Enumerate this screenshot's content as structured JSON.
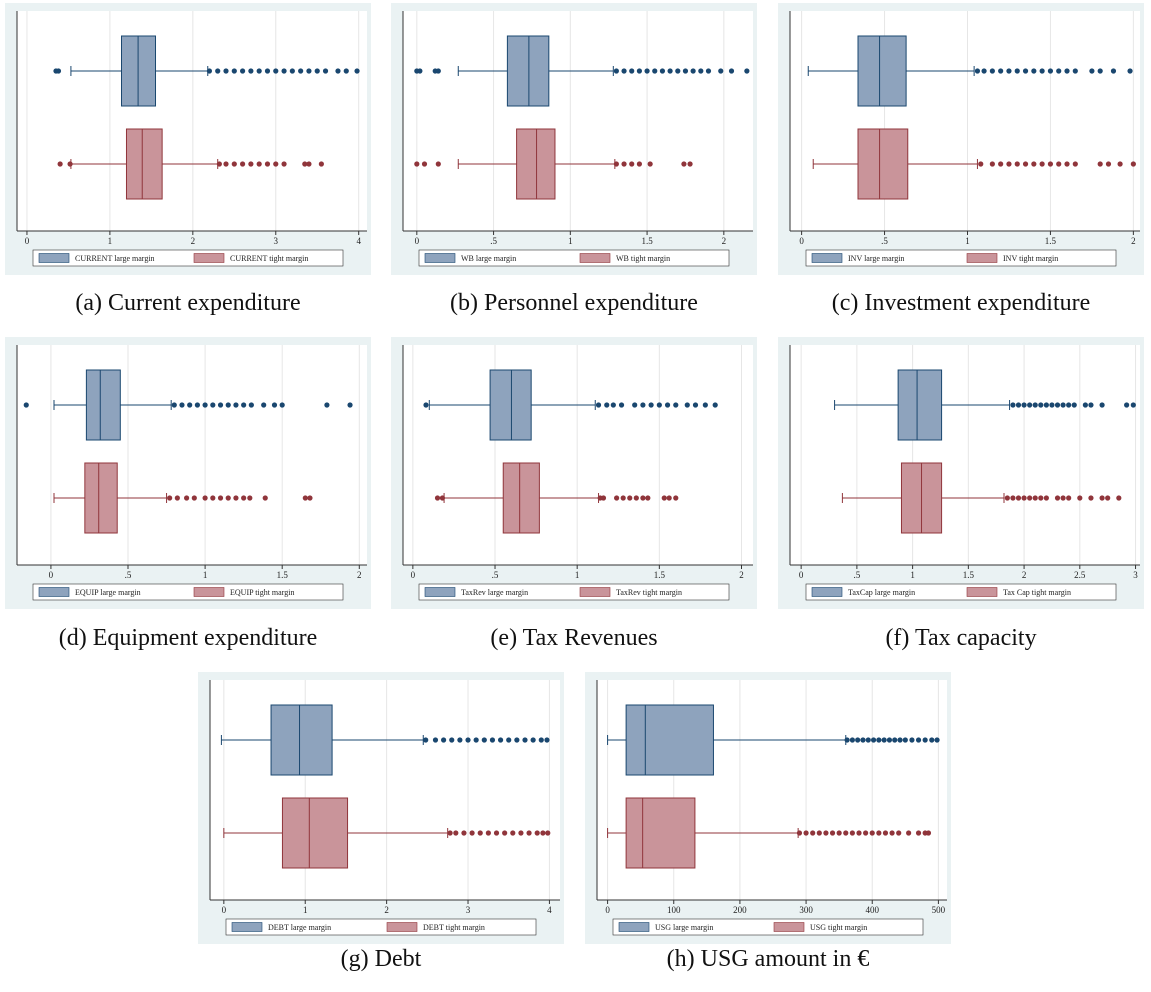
{
  "chart_data": [
    {
      "type": "box",
      "caption": "(a) Current expenditure",
      "xlim": [
        -0.12,
        4.1
      ],
      "xticks": [
        0,
        1,
        2,
        3,
        4
      ],
      "grid": true,
      "series": [
        {
          "name": "CURRENT large margin",
          "color": "#8ea3bd",
          "line_color": "#1a476f",
          "whisker_low": 0.53,
          "q1": 1.14,
          "median": 1.34,
          "q3": 1.55,
          "whisker_high": 2.18,
          "outliers": [
            0.35,
            0.38,
            2.2,
            2.3,
            2.4,
            2.5,
            2.6,
            2.7,
            2.8,
            2.9,
            3.0,
            3.1,
            3.2,
            3.3,
            3.4,
            3.5,
            3.6,
            3.75,
            3.85,
            3.98
          ]
        },
        {
          "name": "CURRENT tight margin",
          "color": "#c9949a",
          "line_color": "#90353b",
          "whisker_low": 0.53,
          "q1": 1.2,
          "median": 1.39,
          "q3": 1.63,
          "whisker_high": 2.3,
          "outliers": [
            0.4,
            0.52,
            2.32,
            2.4,
            2.5,
            2.6,
            2.7,
            2.8,
            2.9,
            3.0,
            3.1,
            3.35,
            3.4,
            3.55
          ]
        }
      ]
    },
    {
      "type": "box",
      "caption": "(b) Personnel expenditure",
      "xlim": [
        -0.09,
        2.19
      ],
      "xticks": [
        0,
        {
          "value": 0.5,
          "label": ".5"
        },
        1,
        1.5,
        2
      ],
      "grid": true,
      "series": [
        {
          "name": "WB large margin",
          "color": "#8ea3bd",
          "line_color": "#1a476f",
          "whisker_low": 0.27,
          "q1": 0.59,
          "median": 0.73,
          "q3": 0.86,
          "whisker_high": 1.28,
          "outliers": [
            0,
            0.02,
            0.12,
            0.14,
            1.3,
            1.35,
            1.4,
            1.45,
            1.5,
            1.55,
            1.6,
            1.65,
            1.7,
            1.75,
            1.8,
            1.85,
            1.9,
            1.98,
            2.05,
            2.15
          ]
        },
        {
          "name": "WB tight margin",
          "color": "#c9949a",
          "line_color": "#90353b",
          "whisker_low": 0.27,
          "q1": 0.65,
          "median": 0.78,
          "q3": 0.9,
          "whisker_high": 1.29,
          "outliers": [
            0,
            0.05,
            0.14,
            1.3,
            1.35,
            1.4,
            1.45,
            1.52,
            1.74,
            1.78
          ]
        }
      ]
    },
    {
      "type": "box",
      "caption": "(c) Investment expenditure",
      "xlim": [
        -0.07,
        2.04
      ],
      "xticks": [
        0,
        {
          "value": 0.5,
          "label": ".5"
        },
        1,
        1.5,
        2
      ],
      "grid": true,
      "series": [
        {
          "name": "INV large margin",
          "color": "#8ea3bd",
          "line_color": "#1a476f",
          "whisker_low": 0.04,
          "q1": 0.34,
          "median": 0.47,
          "q3": 0.63,
          "whisker_high": 1.04,
          "outliers": [
            1.06,
            1.1,
            1.15,
            1.2,
            1.25,
            1.3,
            1.35,
            1.4,
            1.45,
            1.5,
            1.55,
            1.6,
            1.65,
            1.75,
            1.8,
            1.88,
            1.98
          ]
        },
        {
          "name": "INV tight margin",
          "color": "#c9949a",
          "line_color": "#90353b",
          "whisker_low": 0.07,
          "q1": 0.34,
          "median": 0.47,
          "q3": 0.64,
          "whisker_high": 1.06,
          "outliers": [
            1.08,
            1.15,
            1.2,
            1.25,
            1.3,
            1.35,
            1.4,
            1.45,
            1.5,
            1.55,
            1.6,
            1.65,
            1.8,
            1.85,
            1.92,
            2.0
          ]
        }
      ]
    },
    {
      "type": "box",
      "caption": "(d) Equipment expenditure",
      "xlim": [
        -0.22,
        2.05
      ],
      "xticks": [
        0,
        {
          "value": 0.5,
          "label": ".5"
        },
        1,
        1.5,
        2
      ],
      "grid": true,
      "series": [
        {
          "name": "EQUIP large margin",
          "color": "#8ea3bd",
          "line_color": "#1a476f",
          "whisker_low": 0.02,
          "q1": 0.23,
          "median": 0.32,
          "q3": 0.45,
          "whisker_high": 0.78,
          "outliers": [
            -0.16,
            0.8,
            0.85,
            0.9,
            0.95,
            1.0,
            1.05,
            1.1,
            1.15,
            1.2,
            1.25,
            1.3,
            1.38,
            1.45,
            1.5,
            1.79,
            1.94
          ]
        },
        {
          "name": "EQUIP tight margin",
          "color": "#c9949a",
          "line_color": "#90353b",
          "whisker_low": 0.02,
          "q1": 0.22,
          "median": 0.31,
          "q3": 0.43,
          "whisker_high": 0.75,
          "outliers": [
            0.77,
            0.82,
            0.88,
            0.93,
            1.0,
            1.05,
            1.1,
            1.15,
            1.2,
            1.25,
            1.29,
            1.39,
            1.65,
            1.68
          ]
        }
      ]
    },
    {
      "type": "box",
      "caption": "(e) Tax Revenues",
      "xlim": [
        -0.06,
        2.07
      ],
      "xticks": [
        0,
        {
          "value": 0.5,
          "label": ".5"
        },
        1,
        1.5,
        2
      ],
      "grid": true,
      "series": [
        {
          "name": "TaxRev large margin",
          "color": "#8ea3bd",
          "line_color": "#1a476f",
          "whisker_low": 0.1,
          "q1": 0.47,
          "median": 0.6,
          "q3": 0.72,
          "whisker_high": 1.11,
          "outliers": [
            0.08,
            1.13,
            1.18,
            1.22,
            1.27,
            1.35,
            1.4,
            1.45,
            1.5,
            1.55,
            1.6,
            1.67,
            1.72,
            1.78,
            1.84
          ]
        },
        {
          "name": "TaxRev tight margin",
          "color": "#c9949a",
          "line_color": "#90353b",
          "whisker_low": 0.19,
          "q1": 0.55,
          "median": 0.65,
          "q3": 0.77,
          "whisker_high": 1.13,
          "outliers": [
            0.15,
            0.18,
            1.14,
            1.16,
            1.24,
            1.28,
            1.32,
            1.36,
            1.4,
            1.43,
            1.53,
            1.56,
            1.6
          ]
        }
      ]
    },
    {
      "type": "box",
      "caption": "(f) Tax capacity",
      "xlim": [
        -0.1,
        3.04
      ],
      "xticks": [
        0,
        {
          "value": 0.5,
          "label": ".5"
        },
        1,
        1.5,
        2,
        2.5,
        3
      ],
      "grid": true,
      "series": [
        {
          "name": "TaxCap large margin",
          "color": "#8ea3bd",
          "line_color": "#1a476f",
          "whisker_low": 0.3,
          "q1": 0.87,
          "median": 1.04,
          "q3": 1.26,
          "whisker_high": 1.87,
          "outliers": [
            1.9,
            1.95,
            2.0,
            2.05,
            2.1,
            2.15,
            2.2,
            2.25,
            2.3,
            2.35,
            2.4,
            2.45,
            2.55,
            2.6,
            2.7,
            2.92,
            2.98
          ]
        },
        {
          "name": "Tax Cap tight margin",
          "color": "#c9949a",
          "line_color": "#90353b",
          "whisker_low": 0.37,
          "q1": 0.9,
          "median": 1.08,
          "q3": 1.26,
          "whisker_high": 1.82,
          "outliers": [
            1.85,
            1.9,
            1.95,
            2.0,
            2.05,
            2.1,
            2.15,
            2.2,
            2.3,
            2.35,
            2.4,
            2.5,
            2.6,
            2.7,
            2.75,
            2.85
          ]
        }
      ]
    },
    {
      "type": "box",
      "caption": "(g) Debt",
      "xlim": [
        -0.17,
        4.13
      ],
      "xticks": [
        0,
        1,
        2,
        3,
        4
      ],
      "grid": true,
      "series": [
        {
          "name": "DEBT large margin",
          "color": "#8ea3bd",
          "line_color": "#1a476f",
          "whisker_low": -0.03,
          "q1": 0.58,
          "median": 0.93,
          "q3": 1.33,
          "whisker_high": 2.45,
          "outliers": [
            2.48,
            2.6,
            2.7,
            2.8,
            2.9,
            3.0,
            3.1,
            3.2,
            3.3,
            3.4,
            3.5,
            3.6,
            3.7,
            3.8,
            3.9,
            3.97
          ]
        },
        {
          "name": "DEBT tight margin",
          "color": "#c9949a",
          "line_color": "#90353b",
          "whisker_low": 0,
          "q1": 0.72,
          "median": 1.05,
          "q3": 1.52,
          "whisker_high": 2.75,
          "outliers": [
            2.78,
            2.85,
            2.95,
            3.05,
            3.15,
            3.25,
            3.35,
            3.45,
            3.55,
            3.65,
            3.75,
            3.85,
            3.92,
            3.98
          ]
        }
      ]
    },
    {
      "type": "box",
      "caption": "(h) USG amount in €",
      "xlim": [
        -16,
        513
      ],
      "xticks": [
        0,
        100,
        200,
        300,
        400,
        500
      ],
      "grid": true,
      "series": [
        {
          "name": "USG large margin",
          "color": "#8ea3bd",
          "line_color": "#1a476f",
          "whisker_low": 0,
          "q1": 28,
          "median": 57,
          "q3": 160,
          "whisker_high": 360,
          "outliers": [
            362,
            370,
            378,
            386,
            394,
            402,
            410,
            418,
            426,
            434,
            442,
            450,
            460,
            470,
            480,
            490,
            498
          ]
        },
        {
          "name": "USG tight margin",
          "color": "#c9949a",
          "line_color": "#90353b",
          "whisker_low": 0,
          "q1": 28,
          "median": 53,
          "q3": 132,
          "whisker_high": 288,
          "outliers": [
            290,
            300,
            310,
            320,
            330,
            340,
            350,
            360,
            370,
            380,
            390,
            400,
            410,
            420,
            430,
            440,
            455,
            470,
            480,
            485
          ]
        }
      ]
    }
  ]
}
